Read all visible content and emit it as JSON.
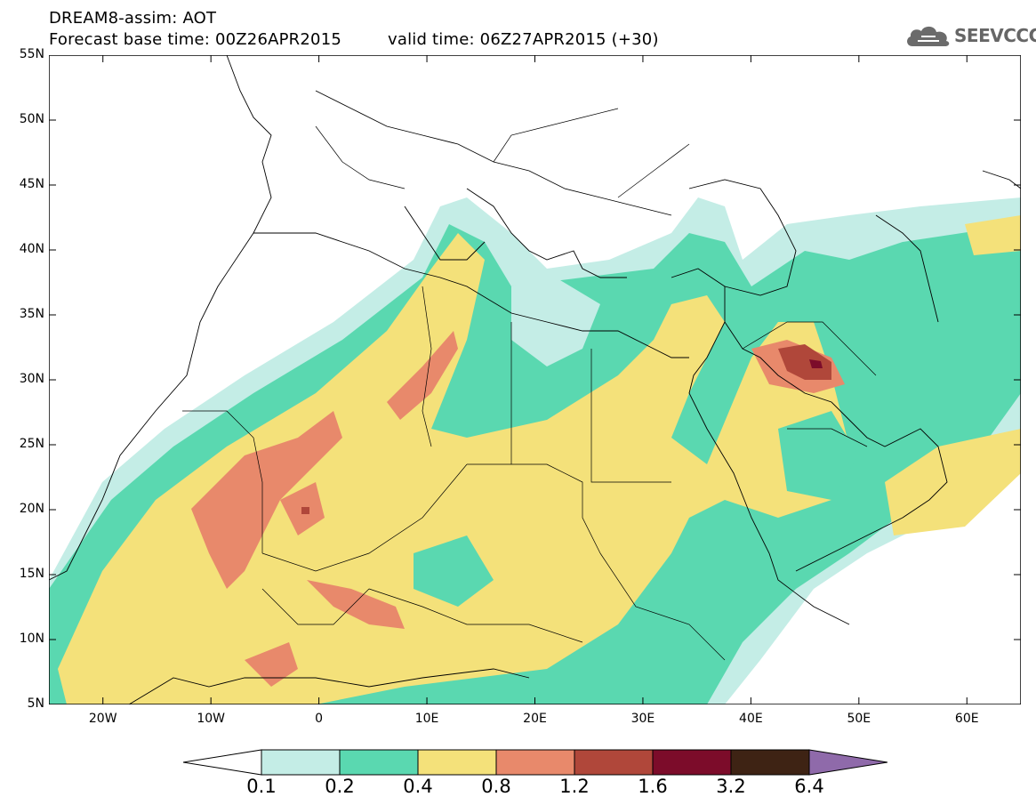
{
  "header": {
    "title_line1": "DREAM8-assim: AOT",
    "base_time": "Forecast base time: 00Z26APR2015",
    "valid_time": "valid time: 06Z27APR2015 (+30)"
  },
  "logo": {
    "text": "SEEVCCC",
    "icon": "cloud-icon"
  },
  "map": {
    "lat_labels": [
      "55N",
      "50N",
      "45N",
      "40N",
      "35N",
      "30N",
      "25N",
      "20N",
      "15N",
      "10N",
      "5N"
    ],
    "lon_labels": [
      "20W",
      "10W",
      "0",
      "10E",
      "20E",
      "30E",
      "40E",
      "50E",
      "60E"
    ],
    "lat_range": [
      5,
      55
    ],
    "lon_range": [
      -25,
      65
    ]
  },
  "colorbar": {
    "labels": [
      "0.1",
      "0.2",
      "0.4",
      "0.8",
      "1.2",
      "1.6",
      "3.2",
      "6.4"
    ],
    "colors": [
      "#ffffff",
      "#c4ede6",
      "#5ad8b0",
      "#f4e17a",
      "#e8896b",
      "#b0473a",
      "#7c0c2a",
      "#3e2314",
      "#8f6aaa"
    ]
  },
  "colors": {
    "light_cyan": "#c4ede6",
    "green": "#5ad8b0",
    "yellow": "#f4e17a",
    "orange": "#e8896b",
    "red_brown": "#b0473a",
    "dark_red": "#7c0c2a"
  }
}
